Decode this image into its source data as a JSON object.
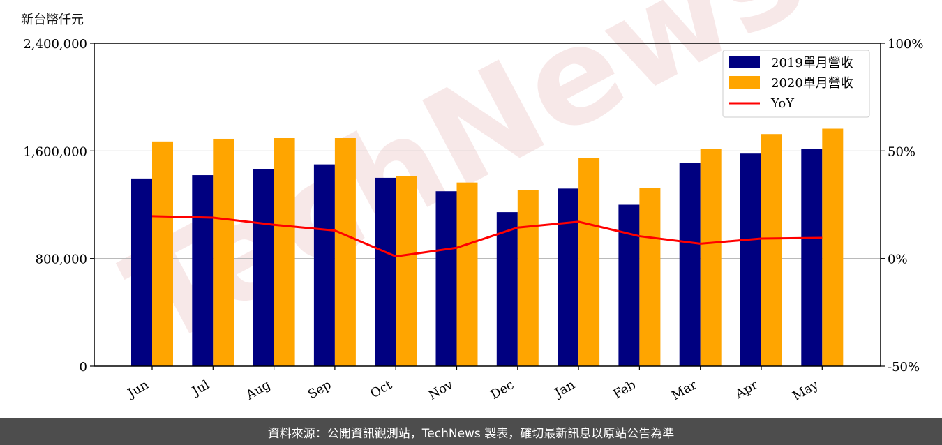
{
  "unit_label": "新台幣仟元",
  "footer": "資料來源：公開資訊觀測站，TechNews 製表，確切最新訊息以原站公告為準",
  "watermark": "TechNews",
  "colors": {
    "series2019": "#000080",
    "series2020": "#ffa500",
    "yoy": "#ff0000",
    "grid": "#b0b0b0"
  },
  "chart_data": {
    "type": "bar",
    "categories": [
      "Jun",
      "Jul",
      "Aug",
      "Sep",
      "Oct",
      "Nov",
      "Dec",
      "Jan",
      "Feb",
      "Mar",
      "Apr",
      "May"
    ],
    "series": [
      {
        "name": "2019單月營收",
        "values": [
          1395000,
          1420000,
          1465000,
          1500000,
          1400000,
          1300000,
          1145000,
          1320000,
          1200000,
          1510000,
          1580000,
          1615000
        ]
      },
      {
        "name": "2020單月營收",
        "values": [
          1670000,
          1690000,
          1695000,
          1695000,
          1410000,
          1365000,
          1310000,
          1545000,
          1325000,
          1615000,
          1725000,
          1765000
        ]
      }
    ],
    "line_series": {
      "name": "YoY",
      "axis": "right",
      "values": [
        19.7,
        19.0,
        15.7,
        13.0,
        1.0,
        5.0,
        14.4,
        17.1,
        10.4,
        6.9,
        9.3,
        9.6
      ]
    },
    "ylim": [
      0,
      2400000
    ],
    "yticks": [
      "0",
      "800,000",
      "1,600,000",
      "2,400,000"
    ],
    "ylim_right": [
      -50,
      100
    ],
    "yticks_right": [
      "-50%",
      "0%",
      "50%",
      "100%"
    ],
    "grid": "horizontal",
    "legend": "top-right"
  }
}
